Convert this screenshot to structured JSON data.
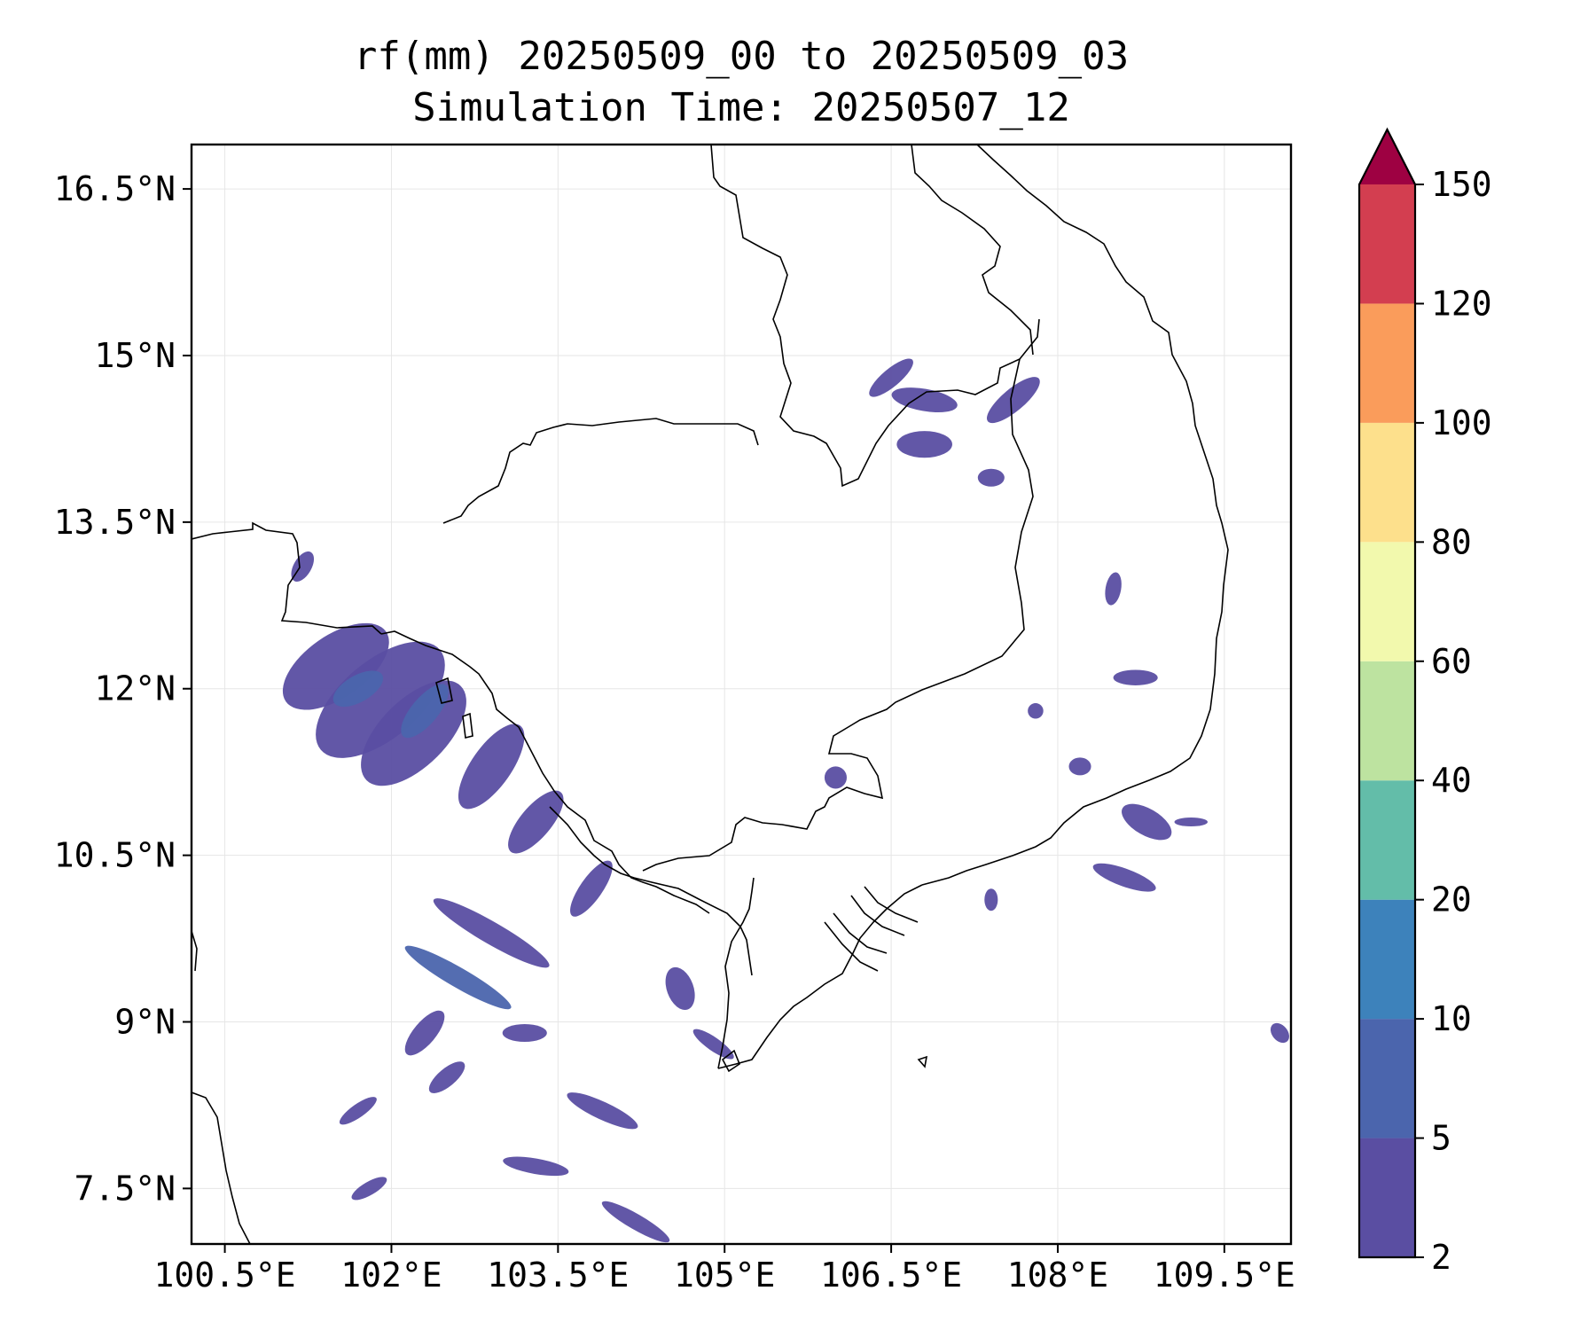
{
  "title": {
    "line1": "rf(mm) 20250509_00 to 20250509_03",
    "line2": "Simulation Time: 20250507_12"
  },
  "map": {
    "lon_range": [
      100.2,
      110.1
    ],
    "lat_range": [
      7.0,
      16.9
    ],
    "lon_ticks": [
      {
        "value": 100.5,
        "label": "100.5°E"
      },
      {
        "value": 102.0,
        "label": "102°E"
      },
      {
        "value": 103.5,
        "label": "103.5°E"
      },
      {
        "value": 105.0,
        "label": "105°E"
      },
      {
        "value": 106.5,
        "label": "106.5°E"
      },
      {
        "value": 108.0,
        "label": "108°E"
      },
      {
        "value": 109.5,
        "label": "109.5°E"
      }
    ],
    "lat_ticks": [
      {
        "value": 7.5,
        "label": "7.5°N"
      },
      {
        "value": 9.0,
        "label": "9°N"
      },
      {
        "value": 10.5,
        "label": "10.5°N"
      },
      {
        "value": 12.0,
        "label": "12°N"
      },
      {
        "value": 13.5,
        "label": "13.5°N"
      },
      {
        "value": 15.0,
        "label": "15°N"
      },
      {
        "value": 16.5,
        "label": "16.5°N"
      }
    ],
    "grid": true,
    "borders_color": "#000000",
    "rain_cells": [
      {
        "lon": 101.5,
        "lat": 12.2,
        "rx": 0.55,
        "ry": 0.28,
        "rot": 35,
        "level": 1
      },
      {
        "lon": 101.9,
        "lat": 11.9,
        "rx": 0.7,
        "ry": 0.35,
        "rot": 40,
        "level": 1
      },
      {
        "lon": 102.2,
        "lat": 11.6,
        "rx": 0.6,
        "ry": 0.3,
        "rot": 45,
        "level": 1
      },
      {
        "lon": 101.7,
        "lat": 12.0,
        "rx": 0.25,
        "ry": 0.12,
        "rot": 30,
        "level": 2
      },
      {
        "lon": 102.3,
        "lat": 11.8,
        "rx": 0.3,
        "ry": 0.12,
        "rot": 50,
        "level": 2
      },
      {
        "lon": 102.9,
        "lat": 11.3,
        "rx": 0.45,
        "ry": 0.18,
        "rot": 55,
        "level": 1
      },
      {
        "lon": 103.3,
        "lat": 10.8,
        "rx": 0.35,
        "ry": 0.14,
        "rot": 50,
        "level": 1
      },
      {
        "lon": 103.8,
        "lat": 10.2,
        "rx": 0.3,
        "ry": 0.1,
        "rot": 55,
        "level": 1
      },
      {
        "lon": 101.2,
        "lat": 13.1,
        "rx": 0.15,
        "ry": 0.08,
        "rot": 60,
        "level": 1
      },
      {
        "lon": 102.9,
        "lat": 9.8,
        "rx": 0.6,
        "ry": 0.1,
        "rot": -30,
        "level": 1
      },
      {
        "lon": 102.6,
        "lat": 9.4,
        "rx": 0.55,
        "ry": 0.09,
        "rot": -30,
        "level": 2
      },
      {
        "lon": 102.3,
        "lat": 8.9,
        "rx": 0.25,
        "ry": 0.1,
        "rot": 50,
        "level": 1
      },
      {
        "lon": 103.2,
        "lat": 8.9,
        "rx": 0.2,
        "ry": 0.08,
        "rot": 0,
        "level": 1
      },
      {
        "lon": 102.5,
        "lat": 8.5,
        "rx": 0.2,
        "ry": 0.08,
        "rot": 40,
        "level": 1
      },
      {
        "lon": 101.7,
        "lat": 8.2,
        "rx": 0.2,
        "ry": 0.06,
        "rot": 35,
        "level": 1
      },
      {
        "lon": 103.9,
        "lat": 8.2,
        "rx": 0.35,
        "ry": 0.08,
        "rot": -25,
        "level": 1
      },
      {
        "lon": 103.3,
        "lat": 7.7,
        "rx": 0.3,
        "ry": 0.07,
        "rot": -10,
        "level": 1
      },
      {
        "lon": 104.2,
        "lat": 7.2,
        "rx": 0.35,
        "ry": 0.07,
        "rot": -30,
        "level": 1
      },
      {
        "lon": 101.8,
        "lat": 7.5,
        "rx": 0.18,
        "ry": 0.06,
        "rot": 30,
        "level": 1
      },
      {
        "lon": 104.9,
        "lat": 8.8,
        "rx": 0.22,
        "ry": 0.06,
        "rot": -35,
        "level": 1
      },
      {
        "lon": 104.6,
        "lat": 9.3,
        "rx": 0.12,
        "ry": 0.2,
        "rot": 20,
        "level": 1
      },
      {
        "lon": 106.8,
        "lat": 14.6,
        "rx": 0.3,
        "ry": 0.1,
        "rot": -10,
        "level": 1
      },
      {
        "lon": 106.5,
        "lat": 14.8,
        "rx": 0.25,
        "ry": 0.08,
        "rot": 40,
        "level": 1
      },
      {
        "lon": 107.6,
        "lat": 14.6,
        "rx": 0.3,
        "ry": 0.1,
        "rot": 40,
        "level": 1
      },
      {
        "lon": 106.8,
        "lat": 14.2,
        "rx": 0.25,
        "ry": 0.12,
        "rot": 0,
        "level": 1
      },
      {
        "lon": 107.4,
        "lat": 13.9,
        "rx": 0.12,
        "ry": 0.08,
        "rot": 0,
        "level": 1
      },
      {
        "lon": 108.5,
        "lat": 12.9,
        "rx": 0.07,
        "ry": 0.15,
        "rot": -10,
        "level": 1
      },
      {
        "lon": 108.7,
        "lat": 12.1,
        "rx": 0.2,
        "ry": 0.07,
        "rot": 0,
        "level": 1
      },
      {
        "lon": 108.2,
        "lat": 11.3,
        "rx": 0.1,
        "ry": 0.08,
        "rot": 0,
        "level": 1
      },
      {
        "lon": 108.8,
        "lat": 10.8,
        "rx": 0.25,
        "ry": 0.12,
        "rot": -30,
        "level": 1
      },
      {
        "lon": 108.6,
        "lat": 10.3,
        "rx": 0.3,
        "ry": 0.08,
        "rot": -20,
        "level": 1
      },
      {
        "lon": 109.2,
        "lat": 10.8,
        "rx": 0.15,
        "ry": 0.04,
        "rot": 0,
        "level": 1
      },
      {
        "lon": 106.0,
        "lat": 11.2,
        "rx": 0.1,
        "ry": 0.1,
        "rot": 0,
        "level": 1
      },
      {
        "lon": 107.8,
        "lat": 11.8,
        "rx": 0.07,
        "ry": 0.07,
        "rot": 0,
        "level": 1
      },
      {
        "lon": 110.0,
        "lat": 8.9,
        "rx": 0.07,
        "ry": 0.1,
        "rot": 40,
        "level": 1
      },
      {
        "lon": 107.4,
        "lat": 10.1,
        "rx": 0.06,
        "ry": 0.1,
        "rot": 0,
        "level": 1
      }
    ]
  },
  "colorbar": {
    "levels": [
      {
        "label": "2",
        "color": "#5a4ea2"
      },
      {
        "label": "5",
        "color": "#4b65ad"
      },
      {
        "label": "10",
        "color": "#3d82bb"
      },
      {
        "label": "20",
        "color": "#63bda9"
      },
      {
        "label": "40",
        "color": "#bde3a0"
      },
      {
        "label": "60",
        "color": "#f2f9ad"
      },
      {
        "label": "80",
        "color": "#fde08c"
      },
      {
        "label": "100",
        "color": "#fa9c5b"
      },
      {
        "label": "120",
        "color": "#d33e50"
      },
      {
        "label": "150",
        "color": "#9e0142"
      }
    ]
  }
}
